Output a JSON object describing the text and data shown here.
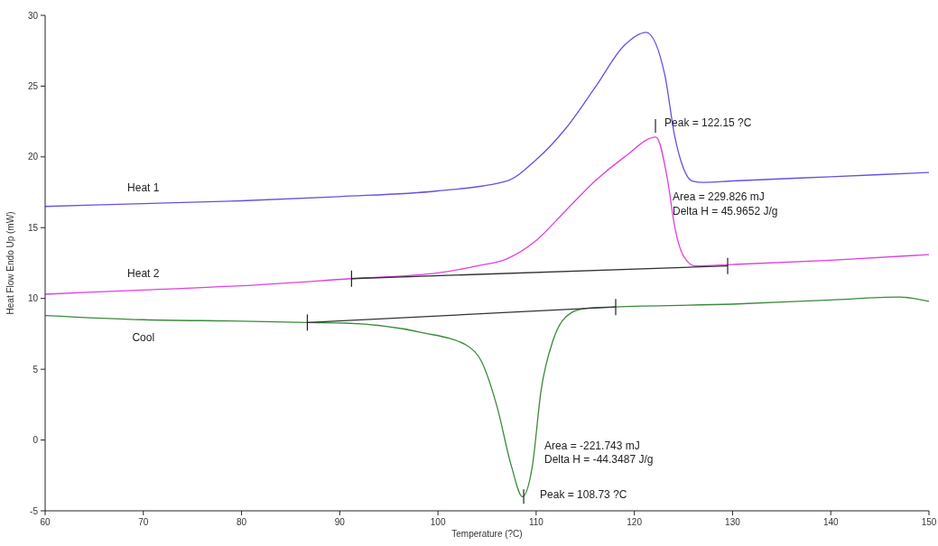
{
  "chart_data": {
    "type": "line",
    "xlabel": "Temperature (?C)",
    "ylabel": "Heat Flow Endo Up (mW)",
    "xlim": [
      60,
      150
    ],
    "xticks": [
      60,
      70,
      80,
      90,
      100,
      110,
      120,
      130,
      140,
      150
    ],
    "ylim": [
      -5,
      30
    ],
    "yticks": [
      -5,
      0,
      5,
      10,
      15,
      20,
      25,
      30
    ],
    "grid": false,
    "marker": "none",
    "line_style": "solid",
    "series": [
      {
        "name": "Heat 1",
        "color": "#6a4fe0",
        "x": [
          60,
          70,
          80,
          90,
          100,
          107,
          110,
          113,
          116,
          119,
          121.2,
          123.1,
          124.1,
          125,
          125.9,
          127,
          130,
          140,
          150
        ],
        "values": [
          16.5,
          16.7,
          16.9,
          17.2,
          17.6,
          18.3,
          19.8,
          22.0,
          24.9,
          27.9,
          28.8,
          25.8,
          21.5,
          19.2,
          18.3,
          18.2,
          18.3,
          18.6,
          18.9
        ]
      },
      {
        "name": "Heat 2",
        "color": "#e040e0",
        "x": [
          60,
          70,
          80,
          91.2,
          100,
          104,
          107,
          110,
          113,
          116,
          119,
          122.2,
          123.4,
          124.1,
          125,
          126.2,
          130,
          140,
          150
        ],
        "values": [
          10.3,
          10.6,
          10.9,
          11.4,
          11.8,
          12.3,
          12.8,
          14.1,
          16.2,
          18.3,
          20.0,
          21.4,
          18.3,
          15.1,
          13.0,
          12.3,
          12.4,
          12.7,
          13.1
        ]
      },
      {
        "name": "Cool",
        "color": "#3a8a3a",
        "x": [
          60,
          70,
          80,
          86.7,
          90.6,
          98.3,
          102.9,
          104.4,
          106,
          107.5,
          108.6,
          109.6,
          110.5,
          111.7,
          113.6,
          115.1,
          118,
          130,
          140,
          147,
          150
        ],
        "values": [
          8.8,
          8.5,
          8.4,
          8.3,
          8.26,
          7.6,
          6.7,
          5.6,
          2.4,
          -1.9,
          -4.0,
          -1.9,
          3.5,
          7.0,
          9.0,
          9.3,
          9.4,
          9.6,
          9.9,
          10.1,
          9.8
        ]
      },
      {
        "color": "#333333",
        "x": [
          91.2,
          129.5
        ],
        "values": [
          11.4,
          12.3
        ]
      },
      {
        "color": "#333333",
        "x": [
          86.7,
          118.1
        ],
        "values": [
          8.3,
          9.4
        ]
      }
    ],
    "annotations": [
      {
        "text": "Peak = 122.15 ?C",
        "x": 122.15,
        "y": 21.4
      },
      "Area = 229.826 mJ",
      "Delta H = 45.9652 J/g",
      {
        "text": "Peak = 108.73 ?C",
        "x": 108.73,
        "y": -4.0
      },
      "Area = -221.743 mJ",
      "Delta H = -44.3487 J/g"
    ]
  }
}
